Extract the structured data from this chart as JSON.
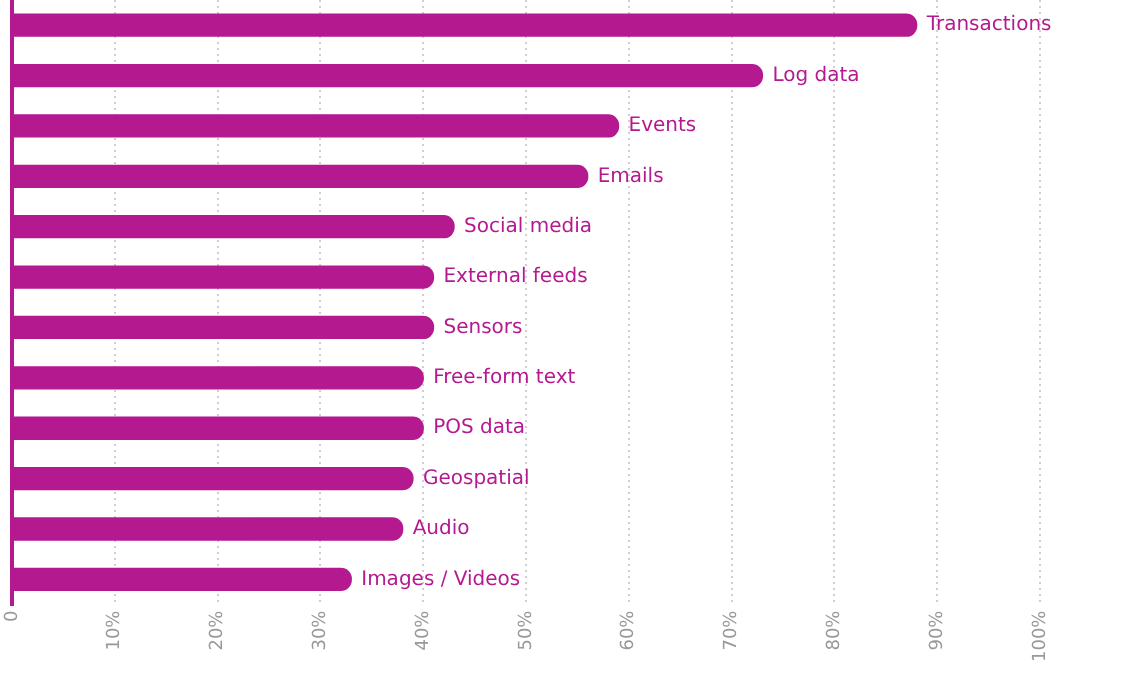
{
  "chart_data": {
    "type": "bar",
    "orientation": "horizontal",
    "categories": [
      "Transactions",
      "Log data",
      "Events",
      "Emails",
      "Social media",
      "External feeds",
      "Sensors",
      "Free-form text",
      "POS data",
      "Geospatial",
      "Audio",
      "Images / Videos"
    ],
    "values": [
      88,
      73,
      59,
      56,
      43,
      41,
      41,
      40,
      40,
      39,
      38,
      33
    ],
    "color": "#b5198f",
    "xlim": [
      0,
      100
    ],
    "xticks": [
      0,
      {
        "value": 10,
        "label": "10%"
      },
      {
        "value": 20,
        "label": "20%"
      },
      {
        "value": 30,
        "label": "30%"
      },
      {
        "value": 40,
        "label": "40%"
      },
      {
        "value": 50,
        "label": "50%"
      },
      {
        "value": 60,
        "label": "60%"
      },
      {
        "value": 70,
        "label": "70%"
      },
      {
        "value": 80,
        "label": "80%"
      },
      {
        "value": 90,
        "label": "90%"
      },
      {
        "value": 100,
        "label": "100%"
      }
    ],
    "grid": "x"
  }
}
